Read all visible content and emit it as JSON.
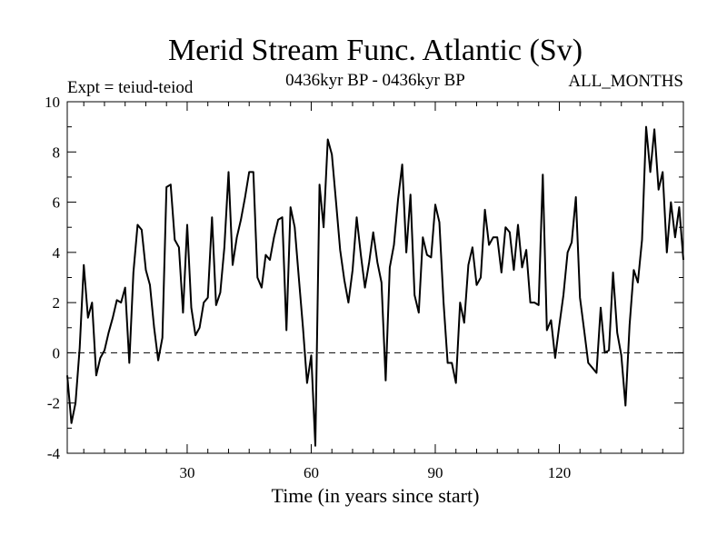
{
  "chart_data": {
    "type": "line",
    "title": "Merid Stream Func. Atlantic (Sv)",
    "subtitle_left": "Expt = teiud-teiod",
    "subtitle_center": "0436kyr BP - 0436kyr BP",
    "subtitle_right": "ALL_MONTHS",
    "xlabel": "Time (in years since start)",
    "ylabel": "",
    "xlim": [
      1,
      150
    ],
    "ylim": [
      -4,
      10
    ],
    "x_ticks": [
      30,
      60,
      90,
      120
    ],
    "y_ticks": [
      -4,
      -2,
      0,
      2,
      4,
      6,
      8,
      10
    ],
    "zero_line": true,
    "grid": false,
    "series": [
      {
        "values": [
          -0.9,
          -2.8,
          -2.0,
          0.2,
          3.5,
          1.4,
          2.0,
          -0.9,
          -0.2,
          0.1,
          0.8,
          1.4,
          2.1,
          2.0,
          2.6,
          -0.4,
          3.2,
          5.1,
          4.9,
          3.3,
          2.7,
          1.0,
          -0.3,
          0.6,
          6.6,
          6.7,
          4.5,
          4.2,
          1.6,
          5.1,
          1.8,
          0.7,
          1.0,
          2.0,
          2.2,
          5.4,
          1.9,
          2.4,
          4.2,
          7.2,
          3.5,
          4.6,
          5.3,
          6.2,
          7.2,
          7.2,
          3.0,
          2.6,
          3.9,
          3.7,
          4.6,
          5.3,
          5.4,
          0.9,
          5.8,
          5.0,
          3.0,
          1.0,
          -1.2,
          -0.1,
          -3.7,
          6.7,
          5.0,
          8.5,
          7.9,
          6.0,
          4.1,
          2.9,
          2.0,
          3.3,
          5.4,
          3.9,
          2.6,
          3.6,
          4.8,
          3.6,
          2.8,
          -1.1,
          3.4,
          4.3,
          6.1,
          7.5,
          4.0,
          6.3,
          2.3,
          1.6,
          4.6,
          3.9,
          3.8,
          5.9,
          5.2,
          2.0,
          -0.4,
          -0.4,
          -1.2,
          2.0,
          1.2,
          3.5,
          4.2,
          2.7,
          3.0,
          5.7,
          4.3,
          4.6,
          4.6,
          3.2,
          5.0,
          4.8,
          3.3,
          5.1,
          3.4,
          4.1,
          2.0,
          2.0,
          1.9,
          7.1,
          0.9,
          1.3,
          -0.2,
          1.1,
          2.3,
          4.0,
          4.4,
          6.2,
          2.2,
          0.9,
          -0.4,
          -0.6,
          -0.8,
          1.8,
          0.0,
          0.1,
          3.2,
          0.8,
          -0.1,
          -2.1,
          1.1,
          3.3,
          2.8,
          4.5,
          9.0,
          7.2,
          8.9,
          6.5,
          7.2,
          4.0,
          6.0,
          4.6,
          5.8,
          3.7
        ]
      }
    ]
  }
}
